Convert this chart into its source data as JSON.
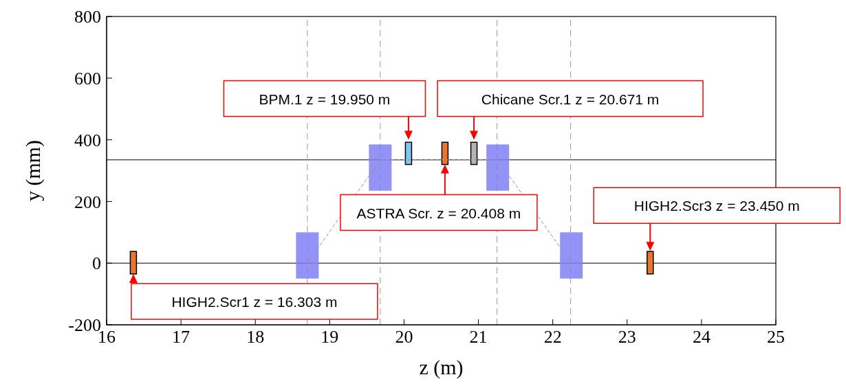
{
  "chart_data": {
    "type": "bar",
    "xlabel": "z (m)",
    "ylabel": "y (mm)",
    "xlim": [
      16,
      25
    ],
    "ylim": [
      -200,
      800
    ],
    "xticks": [
      16,
      17,
      18,
      19,
      20,
      21,
      22,
      23,
      24,
      25
    ],
    "yticks": [
      -200,
      0,
      200,
      400,
      600,
      800
    ],
    "grid": false,
    "legend": false,
    "series": [
      {
        "type": "bar",
        "x": [
          18.7,
          19.68,
          21.26,
          22.25
        ],
        "base": [
          -50,
          235,
          235,
          -50
        ],
        "values": [
          150,
          150,
          150,
          150
        ],
        "color": "#8080f4"
      },
      {
        "type": "bar",
        "x": [
          16.36,
          20.06,
          20.55,
          20.94,
          23.31
        ],
        "base": [
          -35,
          320,
          320,
          320,
          -35
        ],
        "values": [
          73,
          72,
          72,
          72,
          73
        ],
        "colors": [
          "#e8762b",
          "#7fc8f0",
          "#e8762b",
          "#b4b4b4",
          "#e8762b"
        ]
      },
      {
        "type": "line",
        "x": [
          18.7,
          19.68,
          21.26,
          22.25
        ],
        "values": [
          0,
          335,
          335,
          0
        ],
        "color": "#999999",
        "line_style": "dashed",
        "marker": "none"
      }
    ],
    "ref_lines": [
      {
        "axis": "y",
        "value": 0,
        "color": "#000000",
        "line_style": "solid"
      },
      {
        "axis": "y",
        "value": 335,
        "color": "#000000",
        "line_style": "solid"
      },
      {
        "axis": "x",
        "value": 18.7,
        "color": "#999999",
        "line_style": "dashed"
      },
      {
        "axis": "x",
        "value": 19.68,
        "color": "#999999",
        "line_style": "dashed"
      },
      {
        "axis": "x",
        "value": 21.25,
        "color": "#999999",
        "line_style": "dashed"
      },
      {
        "axis": "x",
        "value": 22.24,
        "color": "#999999",
        "line_style": "dashed"
      }
    ],
    "annotations": [
      {
        "text": "HIGH2.Scr1 z = 16.303 m",
        "x": 16.36,
        "y": -35
      },
      {
        "text": "BPM.1  z = 19.950 m",
        "x": 20.06,
        "y": 400
      },
      {
        "text": "Chicane Scr.1 z = 20.671 m",
        "x": 20.94,
        "y": 400
      },
      {
        "text": "ASTRA Scr. z = 20.408 m",
        "x": 20.55,
        "y": 320
      },
      {
        "text": "HIGH2.Scr3 z = 23.450 m",
        "x": 23.31,
        "y": 40
      }
    ]
  }
}
